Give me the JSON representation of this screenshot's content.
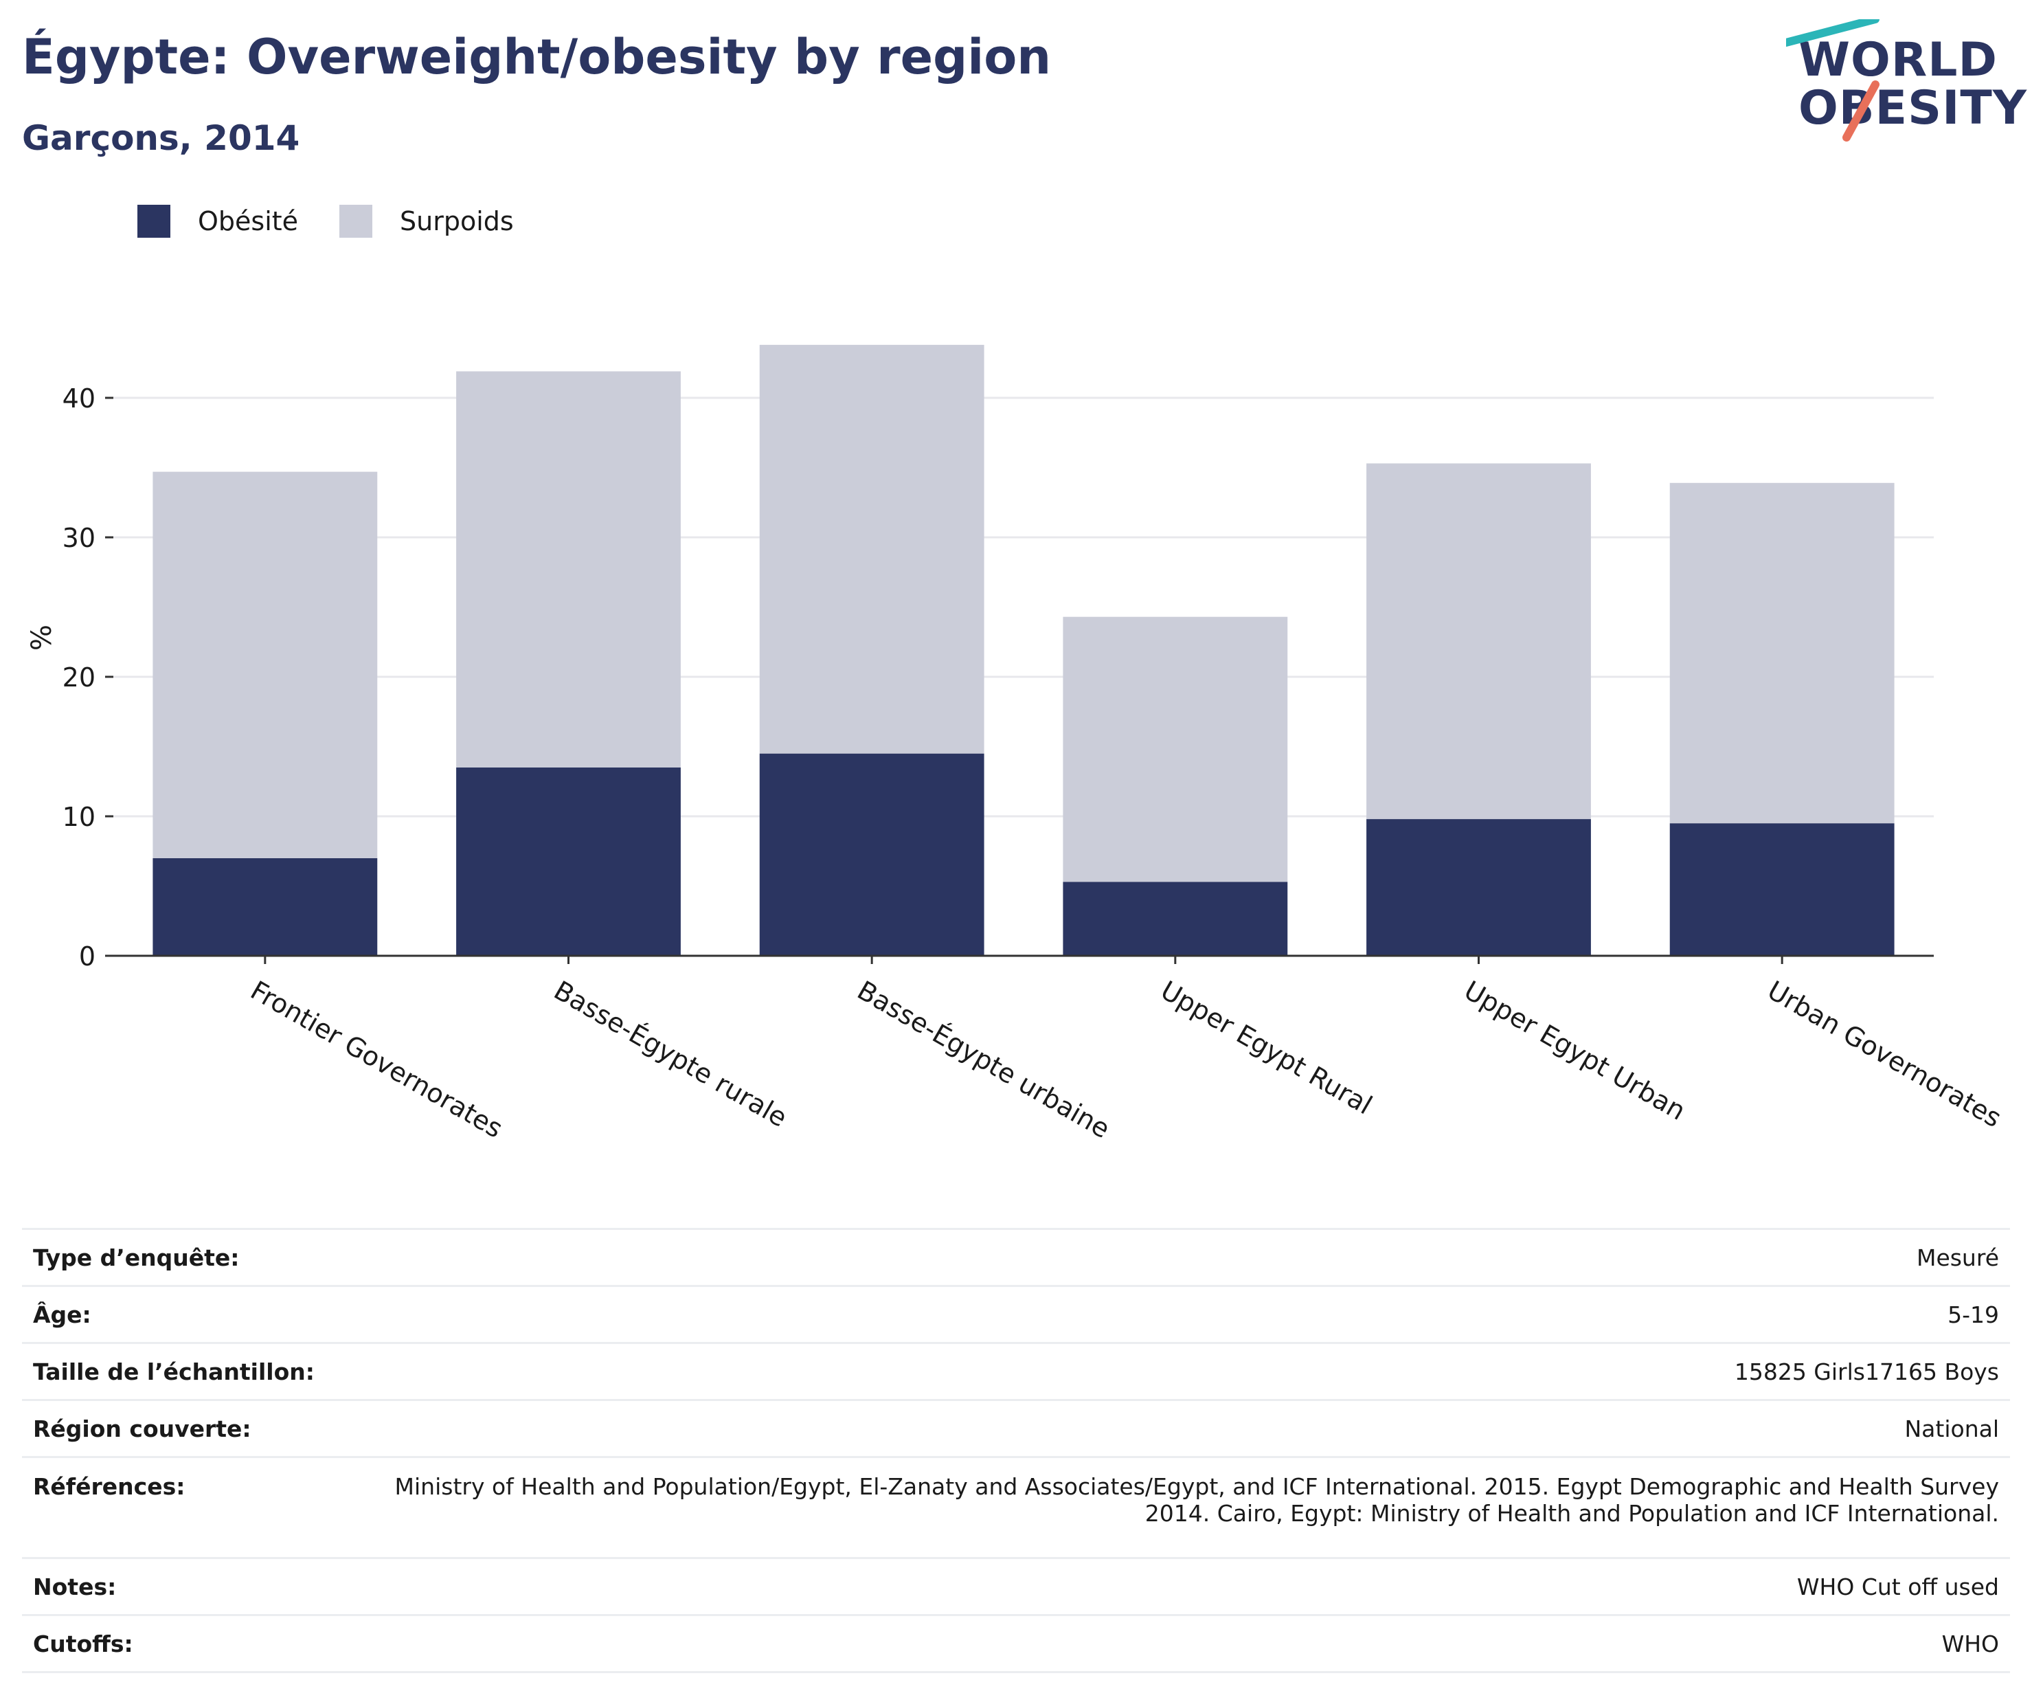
{
  "header": {
    "title": "Égypte: Overweight/obesity by region",
    "subtitle": "Garçons, 2014"
  },
  "logo": {
    "line1": "WORLD",
    "line2": "OBESITY"
  },
  "colors": {
    "obesity": "#2b3561",
    "overweight": "#cbcdd9",
    "text": "#1a1a1a",
    "brand": "#2b3561",
    "logo_teal": "#2bb5b8",
    "logo_coral": "#e8705a"
  },
  "chart_data": {
    "type": "bar",
    "stacked": true,
    "categories": [
      "Frontier Governorates",
      "Basse-Égypte rurale",
      "Basse-Égypte urbaine",
      "Upper Egypt Rural",
      "Upper Egypt Urban",
      "Urban Governorates"
    ],
    "series": [
      {
        "name": "Obésité",
        "color": "#2b3561",
        "values": [
          7.0,
          13.5,
          14.5,
          5.3,
          9.8,
          9.5
        ]
      },
      {
        "name": "Surpoids",
        "color": "#cbcdd9",
        "values": [
          27.7,
          28.4,
          29.3,
          19.0,
          25.5,
          24.4
        ]
      }
    ],
    "ylabel": "%",
    "xlabel": "",
    "ylim": [
      0,
      45
    ],
    "yticks": [
      "0",
      "10",
      "20",
      "30",
      "40"
    ],
    "grid": true,
    "legend": "top-left"
  },
  "info": [
    {
      "key": "Type d’enquête:",
      "value": "Mesuré"
    },
    {
      "key": "Âge:",
      "value": "5-19"
    },
    {
      "key": "Taille de l’échantillon:",
      "value": "15825 Girls17165 Boys"
    },
    {
      "key": "Région couverte:",
      "value": "National"
    },
    {
      "key": "Références:",
      "value": "Ministry of Health and Population/Egypt, El-Zanaty and Associates/Egypt, and ICF International. 2015. Egypt Demographic and Health Survey 2014. Cairo, Egypt: Ministry of Health and Population and ICF International."
    },
    {
      "key": "Notes:",
      "value": "WHO Cut off used"
    },
    {
      "key": "Cutoffs:",
      "value": "WHO"
    }
  ]
}
